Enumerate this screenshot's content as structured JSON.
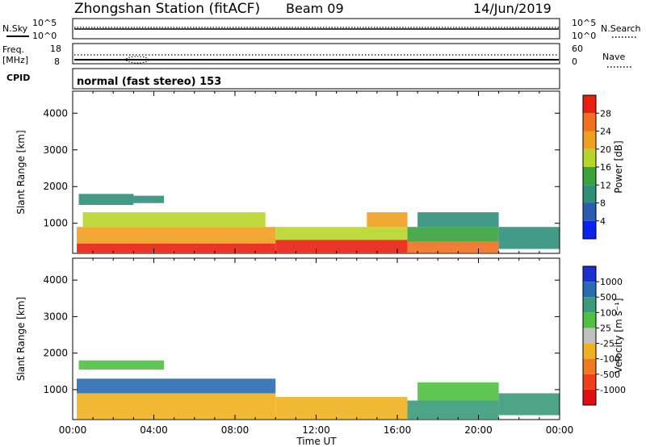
{
  "header": {
    "station": "Zhongshan Station (fitACF)",
    "beam": "Beam 09",
    "date": "14/Jun/2019"
  },
  "upper_panel": {
    "left_label": "N.Sky",
    "left_ticks": [
      "10^5",
      "10^0"
    ],
    "right_label": "N.Search",
    "right_ticks": [
      "10^5",
      "10^0"
    ]
  },
  "freq_panel": {
    "left_label_1": "Freq.",
    "left_label_2": "[MHz]",
    "left_ticks": [
      "18",
      "8"
    ],
    "right_label": "Nave",
    "right_ticks": [
      "60",
      "0"
    ]
  },
  "cpid": {
    "label": "CPID",
    "text": "normal (fast stereo) 153"
  },
  "chart_data": [
    {
      "type": "heatmap",
      "name": "power",
      "ylabel": "Slant Range [km]",
      "yticks": [
        1000,
        2000,
        3000,
        4000
      ],
      "ylim": [
        180,
        4600
      ],
      "xlim": [
        0,
        24
      ],
      "colorbar_label": "Power [dB]",
      "colorbar_ticks": [
        "4",
        "8",
        "12",
        "16",
        "20",
        "24",
        "28"
      ],
      "colorbar_colors": [
        "#0a20f0",
        "#2a5cb4",
        "#2f8f7a",
        "#3aa23c",
        "#b8d52a",
        "#f0a020",
        "#f07020",
        "#e82010"
      ],
      "regions": [
        {
          "t0": 0.2,
          "t1": 10.0,
          "r0": 200,
          "r1": 450,
          "level": 28
        },
        {
          "t0": 0.2,
          "t1": 10.0,
          "r0": 450,
          "r1": 900,
          "level": 20
        },
        {
          "t0": 0.5,
          "t1": 9.5,
          "r0": 900,
          "r1": 1300,
          "level": 16
        },
        {
          "t0": 0.3,
          "t1": 3.0,
          "r0": 1500,
          "r1": 1800,
          "level": 8
        },
        {
          "t0": 3.0,
          "t1": 4.5,
          "r0": 1550,
          "r1": 1750,
          "level": 10
        },
        {
          "t0": 10.0,
          "t1": 16.5,
          "r0": 200,
          "r1": 550,
          "level": 28
        },
        {
          "t0": 10.0,
          "t1": 16.5,
          "r0": 550,
          "r1": 900,
          "level": 18
        },
        {
          "t0": 14.5,
          "t1": 16.5,
          "r0": 900,
          "r1": 1300,
          "level": 22
        },
        {
          "t0": 16.5,
          "t1": 21.0,
          "r0": 200,
          "r1": 500,
          "level": 24
        },
        {
          "t0": 16.5,
          "t1": 21.0,
          "r0": 500,
          "r1": 900,
          "level": 12
        },
        {
          "t0": 17.0,
          "t1": 21.0,
          "r0": 900,
          "r1": 1300,
          "level": 8
        },
        {
          "t0": 21.0,
          "t1": 24.0,
          "r0": 300,
          "r1": 900,
          "level": 8
        }
      ]
    },
    {
      "type": "heatmap",
      "name": "velocity",
      "ylabel": "Slant Range [km]",
      "yticks": [
        1000,
        2000,
        3000,
        4000
      ],
      "ylim": [
        180,
        4600
      ],
      "xlim": [
        0,
        24
      ],
      "colorbar_label": "Velocity [m s⁻¹]",
      "colorbar_ticks": [
        "1000",
        "500",
        "100",
        "25",
        "-25",
        "-100",
        "-500",
        "-1000"
      ],
      "colorbar_colors": [
        "#1c2fd0",
        "#2a6cb4",
        "#3a9a7a",
        "#50c040",
        "#c0c0c0",
        "#f0b020",
        "#f07820",
        "#f04018",
        "#e01010"
      ],
      "regions": [
        {
          "t0": 0.2,
          "t1": 10.0,
          "r0": 200,
          "r1": 900,
          "level": "-100"
        },
        {
          "t0": 0.2,
          "t1": 10.0,
          "r0": 900,
          "r1": 1300,
          "level": "500"
        },
        {
          "t0": 0.3,
          "t1": 4.5,
          "r0": 1550,
          "r1": 1800,
          "level": "25"
        },
        {
          "t0": 10.0,
          "t1": 16.5,
          "r0": 200,
          "r1": 800,
          "level": "-100"
        },
        {
          "t0": 16.5,
          "t1": 21.0,
          "r0": 200,
          "r1": 700,
          "level": "100"
        },
        {
          "t0": 17.0,
          "t1": 21.0,
          "r0": 700,
          "r1": 1200,
          "level": "25"
        },
        {
          "t0": 21.0,
          "t1": 24.0,
          "r0": 300,
          "r1": 900,
          "level": "100"
        }
      ]
    }
  ],
  "xaxis": {
    "ticks": [
      "00:00",
      "04:00",
      "08:00",
      "12:00",
      "16:00",
      "20:00",
      "00:00"
    ],
    "label": "Time UT"
  }
}
